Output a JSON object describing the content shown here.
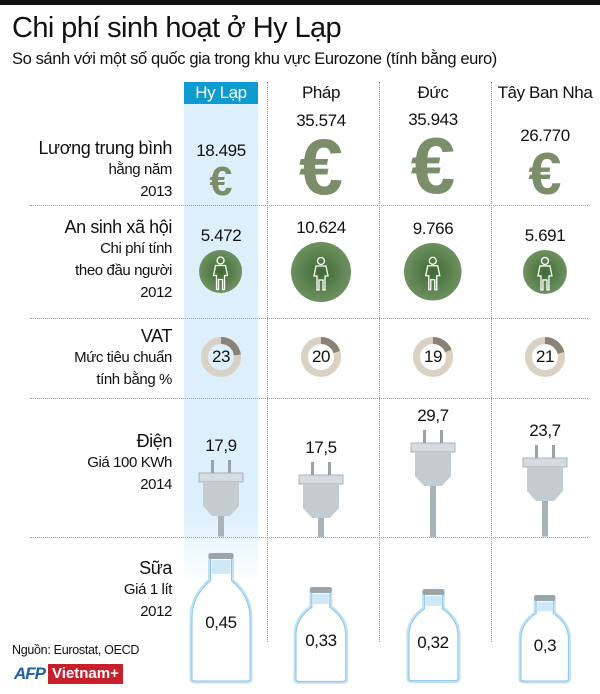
{
  "title": "Chi phí sinh hoạt ở Hy Lạp",
  "subtitle": "So sánh với một số quốc gia trong khu vực Eurozone (tính bằng euro)",
  "source": "Nguồn: Eurostat, OECD",
  "logo": {
    "afp": "AFP",
    "vietnamplus": "Vietnam+"
  },
  "colors": {
    "highlight": "#0d9bd2",
    "highlight_bg": "#dcefFb",
    "euro": "#7b8d69",
    "person_circle": "#4e7a40",
    "vat_ring": "#d9d1c5",
    "vat_slice": "#8b8177",
    "plug": "#c4ccd2",
    "bottle_glow": "#bfe0f4"
  },
  "chart_data": {
    "type": "table",
    "title": "Chi phí sinh hoạt ở Hy Lạp",
    "categories": [
      "Hy Lạp",
      "Pháp",
      "Đức",
      "Tây Ban Nha"
    ],
    "highlighted": "Hy Lạp",
    "rows": [
      {
        "label": [
          "Lương trung bình",
          "hằng năm",
          "2013"
        ],
        "icon": "euro-icon",
        "values": [
          18495,
          35574,
          35943,
          26770
        ],
        "display": [
          "18.495",
          "35.574",
          "35.943",
          "26.770"
        ]
      },
      {
        "label": [
          "An sinh xã hội",
          "Chi phí tính",
          "theo đầu người",
          "2012"
        ],
        "icon": "person-icon",
        "values": [
          5472,
          10624,
          9766,
          5691
        ],
        "display": [
          "5.472",
          "10.624",
          "9.766",
          "5.691"
        ]
      },
      {
        "label": [
          "VAT",
          "Mức tiêu chuẩn",
          "tính bằng %"
        ],
        "icon": "donut-icon",
        "values": [
          23,
          20,
          19,
          21
        ],
        "display": [
          "23",
          "20",
          "19",
          "21"
        ]
      },
      {
        "label": [
          "Điện",
          "Giá 100 KWh",
          "2014"
        ],
        "icon": "plug-icon",
        "values": [
          17.9,
          17.5,
          29.7,
          23.7
        ],
        "display": [
          "17,9",
          "17,5",
          "29,7",
          "23,7"
        ]
      },
      {
        "label": [
          "Sữa",
          "Giá 1 lít",
          "2012"
        ],
        "icon": "milk-bottle-icon",
        "values": [
          0.45,
          0.33,
          0.32,
          0.3
        ],
        "display": [
          "0,45",
          "0,33",
          "0,32",
          "0,3"
        ]
      }
    ]
  }
}
